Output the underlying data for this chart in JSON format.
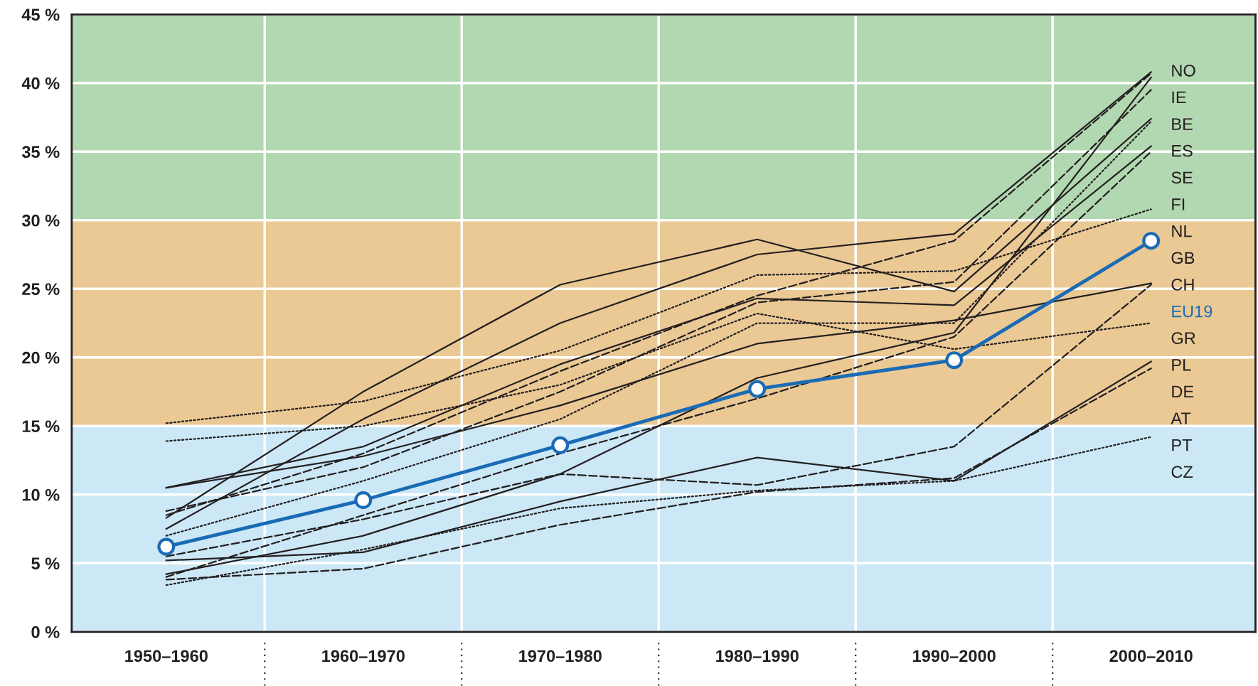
{
  "chart_data": {
    "type": "line",
    "categories": [
      "1950–1960",
      "1960–1970",
      "1970–1980",
      "1980–1990",
      "1990–2000",
      "2000–2010"
    ],
    "ylim": [
      0,
      45
    ],
    "yticks": [
      {
        "value": 0,
        "label": "0 %"
      },
      {
        "value": 5,
        "label": "5 %"
      },
      {
        "value": 10,
        "label": "10 %"
      },
      {
        "value": 15,
        "label": "15 %"
      },
      {
        "value": 20,
        "label": "20 %"
      },
      {
        "value": 25,
        "label": "25 %"
      },
      {
        "value": 30,
        "label": "30 %"
      },
      {
        "value": 35,
        "label": "35 %"
      },
      {
        "value": 40,
        "label": "40 %"
      },
      {
        "value": 45,
        "label": "45 %"
      }
    ],
    "grid": true,
    "bands": [
      {
        "axis": "y",
        "from": 0,
        "to": 15,
        "color": "#cce8f6"
      },
      {
        "axis": "y",
        "from": 15,
        "to": 30,
        "color": "#ebc995"
      },
      {
        "axis": "y",
        "from": 30,
        "to": 45,
        "color": "#b2d8b1"
      }
    ],
    "series": [
      {
        "name": "NO",
        "color": "#231f20",
        "line_style": "solid",
        "values": [
          7.5,
          15.5,
          22.5,
          27.5,
          29.0,
          40.8
        ]
      },
      {
        "name": "IE",
        "color": "#231f20",
        "line_style": "dashed",
        "values": [
          8.5,
          13.0,
          19.0,
          24.5,
          28.5,
          40.7
        ]
      },
      {
        "name": "BE",
        "color": "#231f20",
        "line_style": "solid",
        "values": [
          4.2,
          7.0,
          11.5,
          18.5,
          21.8,
          40.4
        ]
      },
      {
        "name": "ES",
        "color": "#231f20",
        "line_style": "dashed",
        "values": [
          8.8,
          12.0,
          17.5,
          24.0,
          25.5,
          39.5
        ]
      },
      {
        "name": "FI",
        "color": "#231f20",
        "line_style": "dotted",
        "values": [
          7.0,
          11.0,
          15.5,
          22.5,
          22.5,
          37.2
        ]
      },
      {
        "name": "SE",
        "color": "#231f20",
        "line_style": "solid",
        "values": [
          8.3,
          17.5,
          25.3,
          28.6,
          24.8,
          37.4
        ]
      },
      {
        "name": "NL",
        "color": "#231f20",
        "line_style": "solid",
        "values": [
          10.5,
          13.5,
          19.5,
          24.3,
          23.8,
          35.4
        ]
      },
      {
        "name": "GB",
        "color": "#231f20",
        "line_style": "dashed",
        "values": [
          4.0,
          8.5,
          13.0,
          17.0,
          21.5,
          35.0
        ]
      },
      {
        "name": "CH",
        "color": "#231f20",
        "line_style": "dotted",
        "values": [
          15.2,
          16.8,
          20.5,
          26.0,
          26.3,
          30.8
        ]
      },
      {
        "name": "EU19",
        "color": "#1a6bb5",
        "line_style": "solid",
        "marker": "circle",
        "values": [
          6.2,
          9.6,
          13.6,
          17.7,
          19.8,
          28.5
        ]
      },
      {
        "name": "PL",
        "color": "#231f20",
        "line_style": "dashed",
        "values": [
          5.5,
          8.2,
          11.5,
          10.7,
          13.5,
          25.3
        ]
      },
      {
        "name": "GR",
        "color": "#231f20",
        "line_style": "solid",
        "values": [
          10.5,
          12.8,
          16.5,
          21.0,
          22.7,
          25.4
        ]
      },
      {
        "name": "DE",
        "color": "#231f20",
        "line_style": "dotted",
        "values": [
          13.9,
          15.0,
          18.0,
          23.2,
          20.6,
          22.5
        ]
      },
      {
        "name": "AT",
        "color": "#231f20",
        "line_style": "solid",
        "values": [
          5.2,
          5.8,
          9.5,
          12.7,
          11.0,
          19.7
        ]
      },
      {
        "name": "PT",
        "color": "#231f20",
        "line_style": "dashed",
        "values": [
          3.8,
          4.6,
          7.8,
          10.2,
          11.2,
          19.2
        ]
      },
      {
        "name": "CZ",
        "color": "#231f20",
        "line_style": "dotted",
        "values": [
          3.4,
          6.0,
          9.0,
          10.3,
          11.0,
          14.2
        ]
      }
    ]
  }
}
